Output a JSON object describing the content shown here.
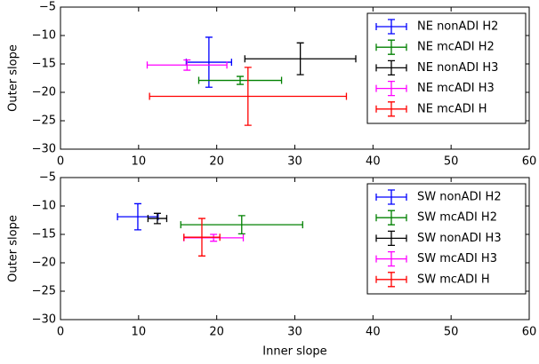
{
  "chart_data": [
    {
      "type": "errorbar",
      "ylabel": "Outer slope",
      "xlim": [
        0,
        60
      ],
      "xticks": [
        0,
        10,
        20,
        30,
        40,
        50,
        60
      ],
      "ylim": [
        -30,
        -5
      ],
      "yticks": [
        {
          "value": -5,
          "label": "−5"
        },
        {
          "value": -10,
          "label": "−10"
        },
        {
          "value": -15,
          "label": "−15"
        },
        {
          "value": -20,
          "label": "−20"
        },
        {
          "value": -25,
          "label": "−25"
        },
        {
          "value": -30,
          "label": "−30"
        }
      ],
      "legend": "upper right",
      "series": [
        {
          "name": "NE nonADI H2",
          "color": "#0000ff",
          "x": 19.0,
          "xerr": 2.9,
          "values": -14.7,
          "yerr": 4.4
        },
        {
          "name": "NE mcADI H2",
          "color": "#008000",
          "x": 23.0,
          "xerr": 5.3,
          "values": -17.9,
          "yerr": 0.7
        },
        {
          "name": "NE nonADI H3",
          "color": "#000000",
          "x": 30.7,
          "xerr": 7.1,
          "values": -14.1,
          "yerr": 2.8
        },
        {
          "name": "NE mcADI H3",
          "color": "#ff00ff",
          "x": 16.2,
          "xerr": 5.1,
          "values": -15.2,
          "yerr": 0.9
        },
        {
          "name": "NE mcADI H",
          "color": "#ff0000",
          "x": 24.0,
          "xerr": 12.6,
          "values": -20.7,
          "yerr": 5.1
        }
      ]
    },
    {
      "type": "errorbar",
      "xlabel": "Inner slope",
      "ylabel": "Outer slope",
      "xlim": [
        0,
        60
      ],
      "xticks": [
        0,
        10,
        20,
        30,
        40,
        50,
        60
      ],
      "ylim": [
        -30,
        -5
      ],
      "yticks": [
        {
          "value": -5,
          "label": "−5"
        },
        {
          "value": -10,
          "label": "−10"
        },
        {
          "value": -15,
          "label": "−15"
        },
        {
          "value": -20,
          "label": "−20"
        },
        {
          "value": -25,
          "label": "−25"
        },
        {
          "value": -30,
          "label": "−30"
        }
      ],
      "legend": "upper right",
      "series": [
        {
          "name": "SW nonADI H2",
          "color": "#0000ff",
          "x": 9.9,
          "xerr": 2.6,
          "values": -11.9,
          "yerr": 2.3
        },
        {
          "name": "SW mcADI H2",
          "color": "#008000",
          "x": 23.2,
          "xerr": 7.8,
          "values": -13.3,
          "yerr": 1.6
        },
        {
          "name": "SW nonADI H3",
          "color": "#000000",
          "x": 12.4,
          "xerr": 1.2,
          "values": -12.2,
          "yerr": 0.9
        },
        {
          "name": "SW mcADI H3",
          "color": "#ff00ff",
          "x": 19.6,
          "xerr": 3.8,
          "values": -15.6,
          "yerr": 0.6
        },
        {
          "name": "SW mcADI H",
          "color": "#ff0000",
          "x": 18.1,
          "xerr": 2.3,
          "values": -15.5,
          "yerr": 3.3
        }
      ]
    }
  ]
}
